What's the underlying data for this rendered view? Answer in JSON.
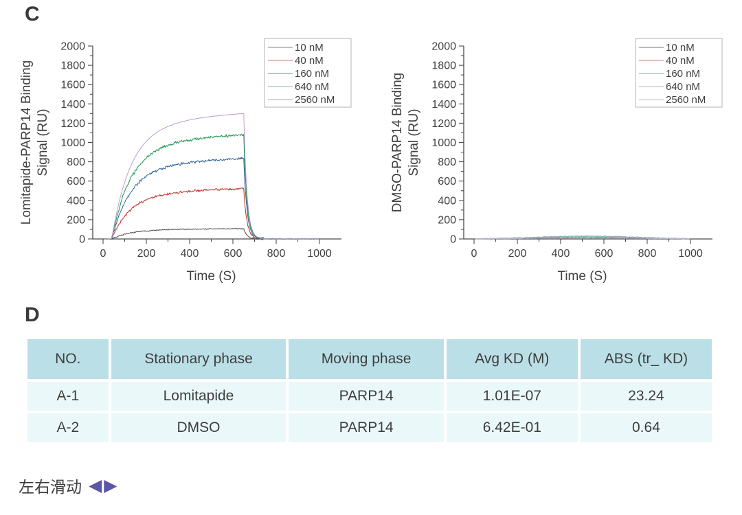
{
  "panels": {
    "c_label": "C",
    "d_label": "D"
  },
  "footer": {
    "swipe_hint": "左右滑动",
    "swipe_left_icon": "◀",
    "swipe_right_icon": "▶",
    "accent_color": "#5b57a8"
  },
  "table": {
    "header_bg": "#bbdfe6",
    "row_bg": "#ebf8f9",
    "columns": [
      "NO.",
      "Stationary phase",
      "Moving phase",
      "Avg KD (M)",
      "ABS (tr_ KD)"
    ],
    "col_widths_pct": [
      12,
      26,
      23,
      19.5,
      19.5
    ],
    "rows": [
      [
        "A-1",
        "Lomitapide",
        "PARP14",
        "1.01E-07",
        "23.24"
      ],
      [
        "A-2",
        "DMSO",
        "PARP14",
        "6.42E-01",
        "0.64"
      ]
    ]
  },
  "chart_data": [
    {
      "type": "line",
      "kind": "binding",
      "title": "",
      "ylabel": "Lomitapide-PARP14 Binding Signal (RU)",
      "ylabel_lines": [
        "Lomitapide-PARP14 Binding",
        "Signal (RU)"
      ],
      "xlabel": "Time (S)",
      "xlim": [
        0,
        1100
      ],
      "ylim": [
        0,
        2000
      ],
      "xticks": [
        0,
        200,
        400,
        600,
        800,
        1000
      ],
      "yticks": [
        0,
        200,
        400,
        600,
        800,
        1000,
        1200,
        1400,
        1600,
        1800,
        2000
      ],
      "grid": false,
      "legend_position": "top-right",
      "assoc_start_s": 40,
      "dissoc_start_s": 650,
      "end_s": 1000,
      "series": [
        {
          "name": "10 nM",
          "color": "#4f4f4f",
          "legend_color": "#9a9a9a",
          "plateau_ru": 112,
          "noise": 7
        },
        {
          "name": "40 nM",
          "color": "#c8342c",
          "legend_color": "#cf9992",
          "plateau_ru": 548,
          "noise": 14
        },
        {
          "name": "160 nM",
          "color": "#34679f",
          "legend_color": "#8aa4c8",
          "plateau_ru": 876,
          "noise": 17
        },
        {
          "name": "640 nM",
          "color": "#1f9a55",
          "legend_color": "#9cc6b4",
          "plateau_ru": 1135,
          "noise": 18
        },
        {
          "name": "2560 nM",
          "color": "#b394c5",
          "legend_color": "#c6b4d2",
          "plateau_ru": 1365,
          "noise": 3
        }
      ]
    },
    {
      "type": "line",
      "kind": "flat",
      "title": "",
      "ylabel": "DMSO-PARP14 Binding Signal (RU)",
      "ylabel_lines": [
        "DMSO-PARP14 Binding",
        "Signal (RU)"
      ],
      "xlabel": "Time (S)",
      "xlim": [
        0,
        1100
      ],
      "ylim": [
        0,
        2000
      ],
      "xticks": [
        0,
        200,
        400,
        600,
        800,
        1000
      ],
      "yticks": [
        0,
        200,
        400,
        600,
        800,
        1000,
        1200,
        1400,
        1600,
        1800,
        2000
      ],
      "grid": false,
      "legend_position": "top-right",
      "end_s": 1000,
      "series": [
        {
          "name": "10 nM",
          "color": "#63636b",
          "legend_color": "#8d8d93",
          "peak_ru": 22,
          "noise": 4
        },
        {
          "name": "40 nM",
          "color": "#c4827c",
          "legend_color": "#cf9992",
          "peak_ru": 14,
          "noise": 4
        },
        {
          "name": "160 nM",
          "color": "#7e9cc3",
          "legend_color": "#9db4d2",
          "peak_ru": 30,
          "noise": 4
        },
        {
          "name": "640 nM",
          "color": "#94bcb2",
          "legend_color": "#aecfc6",
          "peak_ru": 25,
          "noise": 4
        },
        {
          "name": "2560 nM",
          "color": "#c0b2d2",
          "legend_color": "#cfc4dc",
          "peak_ru": 10,
          "noise": 4
        }
      ]
    }
  ]
}
